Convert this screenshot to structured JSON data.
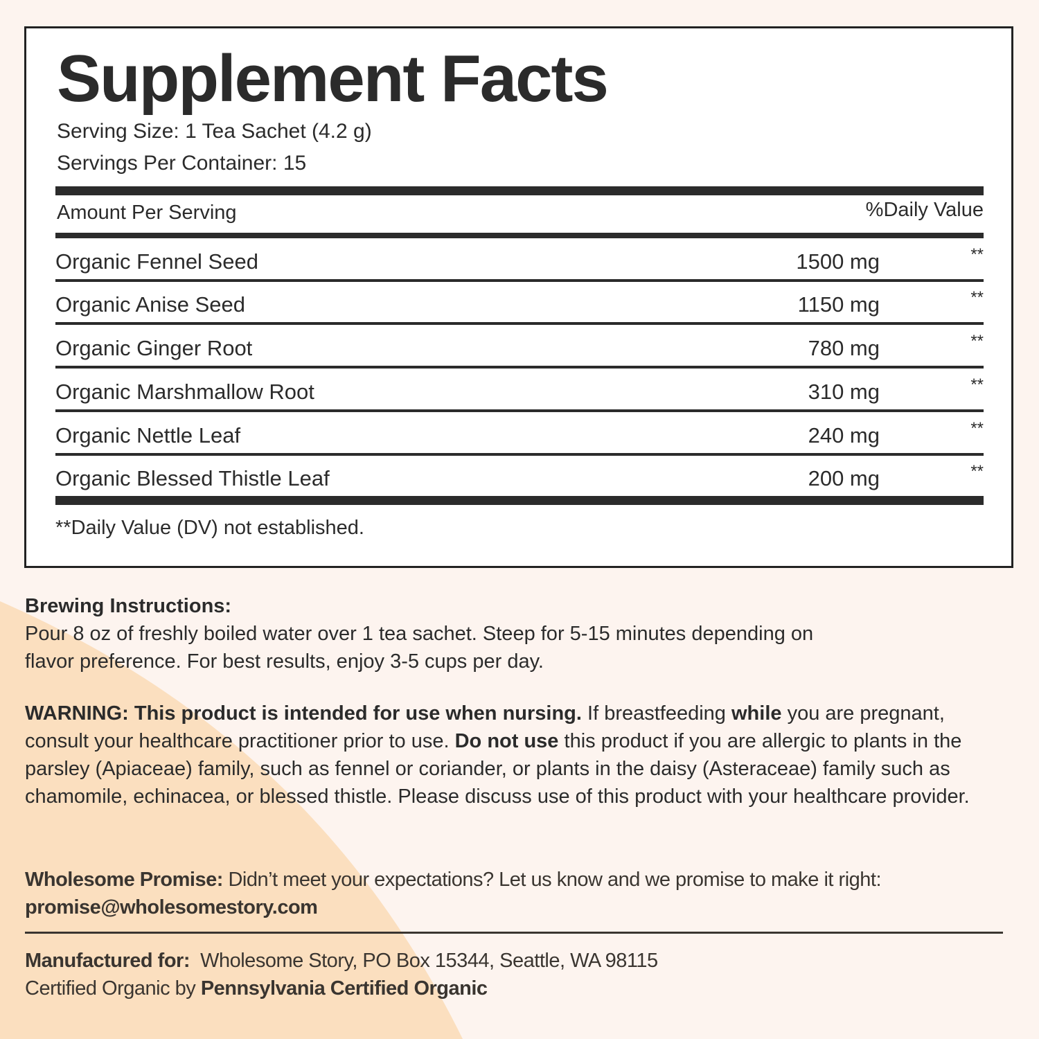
{
  "colors": {
    "background": "#fdf4ef",
    "accent_shape": "#fbdfbf",
    "text": "#2b2b2b"
  },
  "facts": {
    "title": "Supplement Facts",
    "serving_size": "Serving Size: 1 Tea Sachet (4.2 g)",
    "servings_per_container": "Servings Per Container: 15",
    "amount_header": "Amount Per Serving",
    "dv_header": "%Daily Value",
    "rows": [
      {
        "name": "Organic Fennel Seed",
        "amount": "1500 mg",
        "dv": "**"
      },
      {
        "name": "Organic Anise Seed",
        "amount": "1150 mg",
        "dv": "**"
      },
      {
        "name": "Organic Ginger Root",
        "amount": "780 mg",
        "dv": "**"
      },
      {
        "name": "Organic Marshmallow Root",
        "amount": "310 mg",
        "dv": "**"
      },
      {
        "name": "Organic Nettle Leaf",
        "amount": "240 mg",
        "dv": "**"
      },
      {
        "name": "Organic Blessed Thistle Leaf",
        "amount": "200 mg",
        "dv": "**"
      }
    ],
    "footnote": "**Daily Value (DV) not established."
  },
  "brewing": {
    "label": "Brewing Instructions:",
    "line1": "Pour 8 oz of freshly boiled water over 1 tea sachet. Steep for 5-15 minutes depending on",
    "line2": "flavor preference. For best results, enjoy 3-5 cups per day."
  },
  "warning": {
    "bold1": "WARNING: This product is intended for use when nursing.",
    "t1": " If breastfeeding ",
    "bold2": "while",
    "t2": " you are pregnant, consult your healthcare practitioner prior to use. ",
    "bold3": "Do not use",
    "t3": " this product if you are allergic to plants in the parsley (Apiaceae) family, such as fennel or coriander, or plants in the daisy (Asteraceae) family such as chamomile, echinacea, or blessed thistle. Please discuss use of this product with your healthcare provider."
  },
  "promise": {
    "label": "Wholesome Promise:",
    "text": " Didn’t meet your expectations? Let us know and we promise to make it right:",
    "email": "promise@wholesomestory.com"
  },
  "manufacturer": {
    "label": "Manufactured for:",
    "text": "  Wholesome Story, PO Box 15344, Seattle, WA 98115",
    "cert_prefix": "Certified Organic by ",
    "cert_body": "Pennsylvania Certified Organic"
  }
}
